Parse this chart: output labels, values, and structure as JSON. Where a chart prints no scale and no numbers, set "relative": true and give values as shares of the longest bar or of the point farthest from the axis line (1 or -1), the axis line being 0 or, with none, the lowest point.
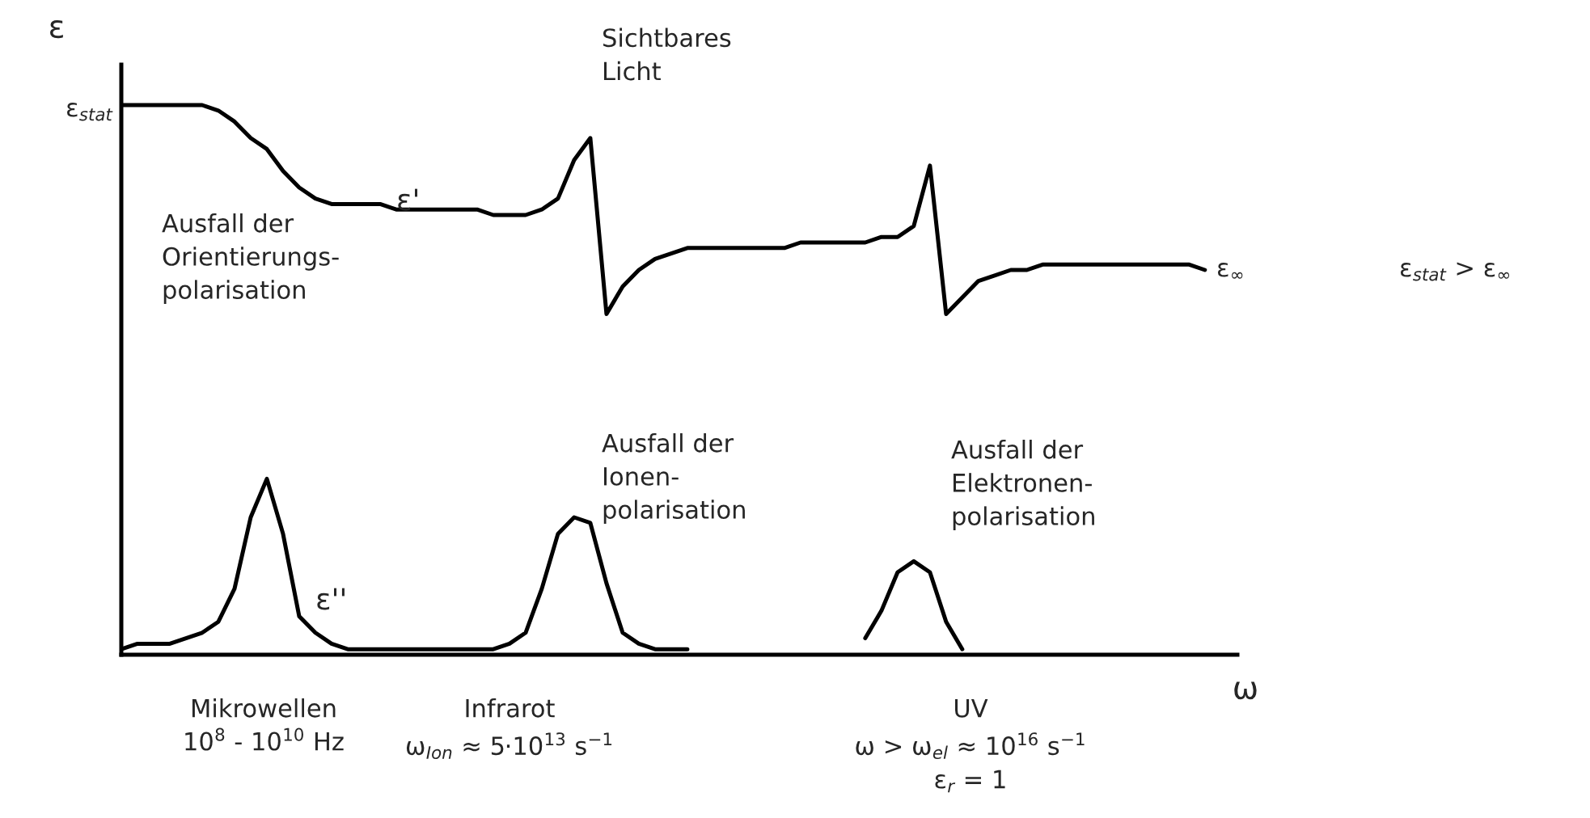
{
  "chart_data": {
    "type": "line",
    "relative": true,
    "ylabel": "ε",
    "xlabel": "ω",
    "legend": false,
    "marker": "none",
    "line_style": "solid",
    "categories": [
      null,
      null,
      null,
      null,
      null,
      null,
      null,
      null,
      null,
      null,
      null,
      null,
      null,
      null,
      null,
      null,
      null,
      null,
      null,
      null,
      null,
      null,
      null,
      null,
      null,
      null,
      null,
      null,
      null,
      null,
      null,
      null,
      null,
      null,
      null,
      null,
      null,
      null,
      null,
      null,
      null,
      null,
      null,
      null,
      null,
      null,
      null,
      null,
      null,
      null,
      null,
      null,
      null,
      null,
      null,
      null,
      null,
      null,
      null,
      null,
      null,
      null,
      null,
      null,
      null,
      null,
      null,
      null
    ],
    "series": [
      {
        "name": "ε'",
        "color": "#000000",
        "values": [
          1.0,
          1.0,
          1.0,
          1.0,
          1.0,
          1.0,
          0.99,
          0.97,
          0.94,
          0.92,
          0.88,
          0.85,
          0.83,
          0.82,
          0.82,
          0.82,
          0.82,
          0.81,
          0.81,
          0.81,
          0.81,
          0.81,
          0.81,
          0.8,
          0.8,
          0.8,
          0.81,
          0.83,
          0.9,
          0.94,
          0.62,
          0.67,
          0.7,
          0.72,
          0.73,
          0.74,
          0.74,
          0.74,
          0.74,
          0.74,
          0.74,
          0.74,
          0.75,
          0.75,
          0.75,
          0.75,
          0.75,
          0.76,
          0.76,
          0.78,
          0.89,
          0.62,
          0.65,
          0.68,
          0.69,
          0.7,
          0.7,
          0.71,
          0.71,
          0.71,
          0.71,
          0.71,
          0.71,
          0.71,
          0.71,
          0.71,
          0.71,
          0.7
        ]
      },
      {
        "name": "ε''",
        "color": "#000000",
        "values": [
          0.01,
          0.02,
          0.02,
          0.02,
          0.03,
          0.04,
          0.06,
          0.12,
          0.25,
          0.32,
          0.22,
          0.07,
          0.04,
          0.02,
          0.01,
          0.01,
          0.01,
          0.01,
          0.01,
          0.01,
          0.01,
          0.01,
          0.01,
          0.01,
          0.02,
          0.04,
          0.12,
          0.22,
          0.25,
          0.24,
          0.13,
          0.04,
          0.02,
          0.01,
          0.01,
          0.01,
          null,
          null,
          null,
          null,
          null,
          null,
          null,
          null,
          null,
          null,
          0.03,
          0.08,
          0.15,
          0.17,
          0.15,
          0.06,
          0.01,
          null,
          null,
          null,
          null,
          null,
          null,
          null,
          null,
          null,
          null,
          null,
          null,
          null,
          null,
          null
        ]
      }
    ],
    "annotations": [
      "ε$_{stat}$",
      "Sichtbares\nLicht",
      "ε$_{∞}$",
      "ε$_{stat}$ > ε$_{∞}$",
      "Ausfall der\nOrientierungs-\npolarisation",
      "Ausfall der\nIonen-\npolarisation",
      "Ausfall der\nElektronen-\npolarisation",
      "Mikrowellen\n10$^{8}$ - 10$^{10}$ Hz",
      "Infrarot\nω$_{Ion}$ ≈ 5·10$^{13}$ s$^{−1}$",
      "UV\nω > ω$_{el}$ ≈ 10$^{16}$ s$^{−1}$\nε$_{r}$ = 1"
    ]
  }
}
